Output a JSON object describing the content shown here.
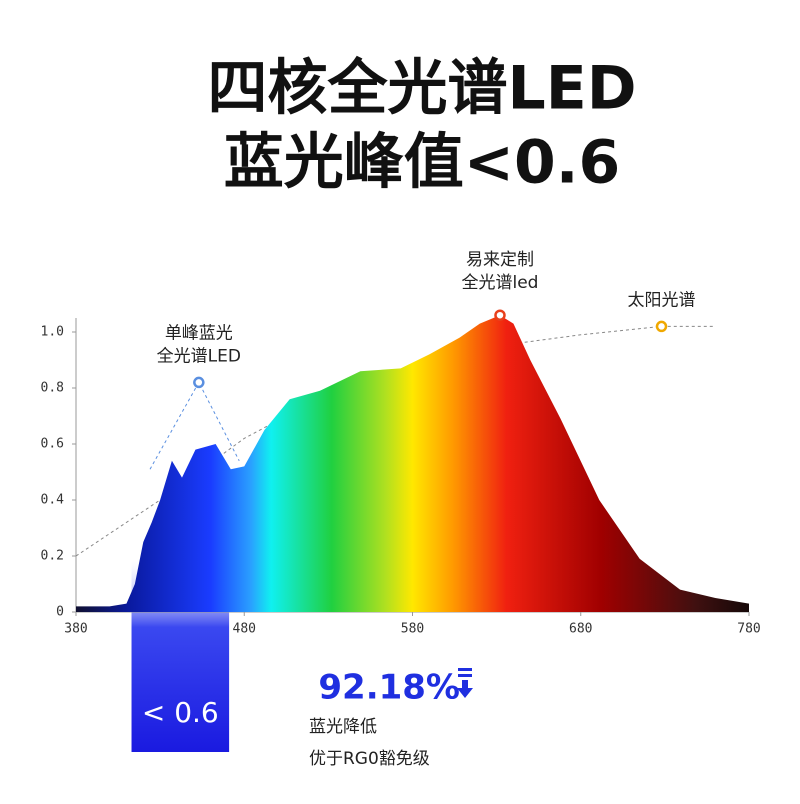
{
  "chart_data": {
    "type": "area",
    "title_lines": [
      "四核全光谱LED",
      "蓝光峰值<0.6"
    ],
    "xlim": [
      380,
      780
    ],
    "xticks": [
      380,
      480,
      580,
      680,
      780
    ],
    "ylim": [
      0,
      1.1
    ],
    "yticks": [
      0,
      0.2,
      0.4,
      0.6,
      0.8,
      {
        "value": 1,
        "label": "1.0"
      }
    ],
    "series": [
      {
        "kind": "area",
        "label_lines": [
          "易来定制",
          "全光谱led"
        ],
        "color": "#e8401c",
        "x": [
          380,
          400,
          410,
          415,
          420,
          425,
          430,
          437,
          443,
          451,
          463,
          472,
          480,
          492,
          507,
          525,
          549,
          573,
          590,
          608,
          620,
          632,
          640,
          650,
          668,
          691,
          715,
          739,
          760,
          780
        ],
        "values": [
          0.02,
          0.02,
          0.03,
          0.1,
          0.25,
          0.32,
          0.4,
          0.54,
          0.48,
          0.58,
          0.6,
          0.51,
          0.52,
          0.65,
          0.76,
          0.79,
          0.86,
          0.87,
          0.92,
          0.98,
          1.03,
          1.06,
          1.03,
          0.9,
          0.69,
          0.4,
          0.19,
          0.08,
          0.05,
          0.03
        ],
        "marker": {
          "x": 632,
          "value": 1.06
        }
      },
      {
        "kind": "line",
        "label_lines": [
          "太阳光谱"
        ],
        "color": "#f0a800",
        "x": [
          380,
          430,
          480,
          530,
          580,
          630,
          680,
          728,
          760
        ],
        "values": [
          0.2,
          0.4,
          0.62,
          0.78,
          0.88,
          0.95,
          0.99,
          1.02,
          1.02
        ],
        "marker": {
          "x": 728,
          "value": 1.02
        }
      },
      {
        "kind": "line",
        "label_lines": [
          "单峰蓝光",
          "全光谱LED"
        ],
        "color": "#5a8fe0",
        "x": [
          424,
          453,
          477
        ],
        "values": [
          0.51,
          0.82,
          0.54
        ],
        "marker": {
          "x": 453,
          "value": 0.82
        }
      }
    ],
    "callout": {
      "text": "< 0.6",
      "xrange": [
        413,
        471
      ]
    },
    "note": {
      "headline": "92.18%",
      "lines": [
        "蓝光降低",
        "优于RG0豁免级"
      ]
    }
  }
}
